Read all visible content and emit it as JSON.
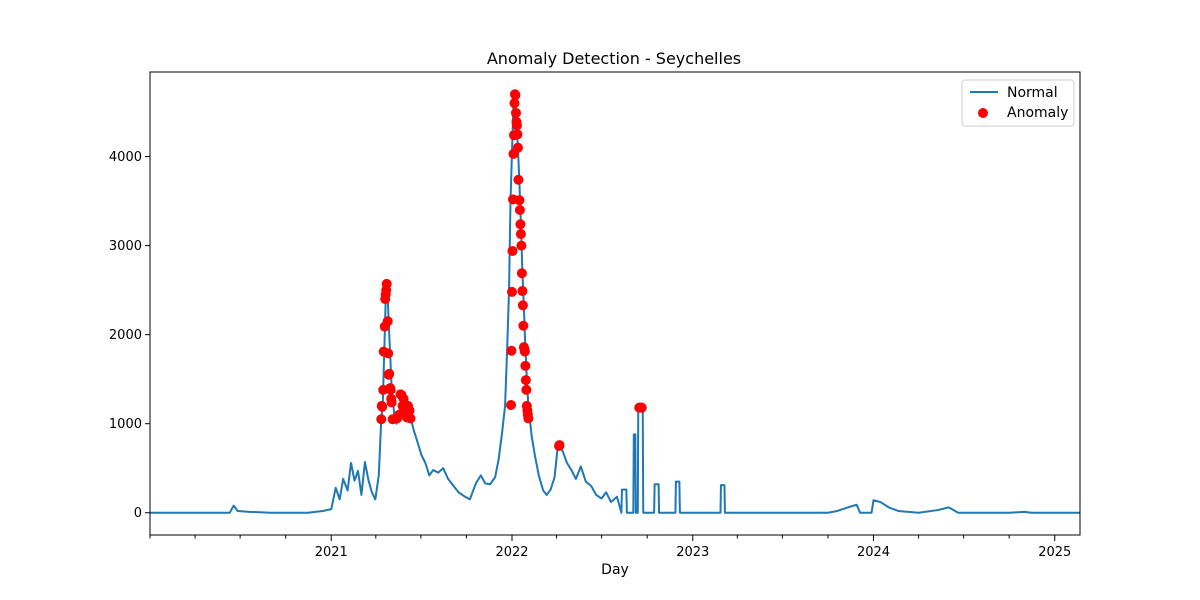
{
  "chart_data": {
    "type": "line",
    "title": "Anomaly Detection - Seychelles",
    "xlabel": "Day",
    "ylabel": "",
    "x_range": [
      "2020-01-01",
      "2025-02-21"
    ],
    "ylim": [
      -250,
      4950
    ],
    "x_ticks": [
      {
        "date": "2021-01-01",
        "label": "2021"
      },
      {
        "date": "2022-01-01",
        "label": "2022"
      },
      {
        "date": "2023-01-01",
        "label": "2023"
      },
      {
        "date": "2024-01-01",
        "label": "2024"
      },
      {
        "date": "2025-01-01",
        "label": "2025"
      }
    ],
    "y_ticks": [
      0,
      1000,
      2000,
      3000,
      4000
    ],
    "legend_placement": "top-right",
    "grid": false,
    "series": [
      {
        "name": "Normal",
        "kind": "line",
        "color": "#1f77b4",
        "points": [
          [
            "2020-01-01",
            0
          ],
          [
            "2020-06-10",
            0
          ],
          [
            "2020-06-18",
            80
          ],
          [
            "2020-06-26",
            20
          ],
          [
            "2020-07-20",
            10
          ],
          [
            "2020-09-01",
            0
          ],
          [
            "2020-11-15",
            0
          ],
          [
            "2020-12-15",
            20
          ],
          [
            "2021-01-01",
            40
          ],
          [
            "2021-01-10",
            280
          ],
          [
            "2021-01-18",
            150
          ],
          [
            "2021-01-25",
            380
          ],
          [
            "2021-02-03",
            250
          ],
          [
            "2021-02-10",
            560
          ],
          [
            "2021-02-17",
            360
          ],
          [
            "2021-02-24",
            470
          ],
          [
            "2021-03-03",
            200
          ],
          [
            "2021-03-10",
            570
          ],
          [
            "2021-03-17",
            370
          ],
          [
            "2021-03-24",
            230
          ],
          [
            "2021-03-31",
            150
          ],
          [
            "2021-04-07",
            420
          ],
          [
            "2021-04-12",
            1050
          ],
          [
            "2021-04-15",
            1220
          ],
          [
            "2021-04-18",
            1800
          ],
          [
            "2021-04-21",
            2400
          ],
          [
            "2021-04-24",
            2570
          ],
          [
            "2021-04-27",
            2150
          ],
          [
            "2021-04-30",
            1780
          ],
          [
            "2021-05-03",
            1400
          ],
          [
            "2021-05-06",
            1250
          ],
          [
            "2021-05-09",
            1050
          ],
          [
            "2021-05-13",
            1000
          ],
          [
            "2021-05-18",
            1100
          ],
          [
            "2021-05-23",
            1320
          ],
          [
            "2021-05-28",
            1280
          ],
          [
            "2021-06-03",
            1150
          ],
          [
            "2021-06-10",
            1070
          ],
          [
            "2021-06-17",
            920
          ],
          [
            "2021-06-25",
            780
          ],
          [
            "2021-07-02",
            650
          ],
          [
            "2021-07-10",
            560
          ],
          [
            "2021-07-18",
            420
          ],
          [
            "2021-07-26",
            480
          ],
          [
            "2021-08-05",
            450
          ],
          [
            "2021-08-15",
            500
          ],
          [
            "2021-08-25",
            380
          ],
          [
            "2021-09-05",
            300
          ],
          [
            "2021-09-15",
            230
          ],
          [
            "2021-09-28",
            180
          ],
          [
            "2021-10-08",
            150
          ],
          [
            "2021-10-20",
            330
          ],
          [
            "2021-10-30",
            420
          ],
          [
            "2021-11-08",
            330
          ],
          [
            "2021-11-18",
            320
          ],
          [
            "2021-11-28",
            400
          ],
          [
            "2021-12-05",
            600
          ],
          [
            "2021-12-12",
            900
          ],
          [
            "2021-12-18",
            1200
          ],
          [
            "2021-12-22",
            1800
          ],
          [
            "2021-12-26",
            2500
          ],
          [
            "2021-12-29",
            3500
          ],
          [
            "2022-01-01",
            4050
          ],
          [
            "2022-01-04",
            4600
          ],
          [
            "2022-01-07",
            4690
          ],
          [
            "2022-01-10",
            4350
          ],
          [
            "2022-01-13",
            4100
          ],
          [
            "2022-01-16",
            3700
          ],
          [
            "2022-01-19",
            3250
          ],
          [
            "2022-01-22",
            2700
          ],
          [
            "2022-01-25",
            2300
          ],
          [
            "2022-01-28",
            1850
          ],
          [
            "2022-01-31",
            1500
          ],
          [
            "2022-02-03",
            1200
          ],
          [
            "2022-02-06",
            1050
          ],
          [
            "2022-02-10",
            850
          ],
          [
            "2022-02-16",
            650
          ],
          [
            "2022-02-24",
            420
          ],
          [
            "2022-03-05",
            250
          ],
          [
            "2022-03-12",
            200
          ],
          [
            "2022-03-20",
            260
          ],
          [
            "2022-03-28",
            400
          ],
          [
            "2022-04-03",
            720
          ],
          [
            "2022-04-08",
            760
          ],
          [
            "2022-04-14",
            680
          ],
          [
            "2022-04-22",
            560
          ],
          [
            "2022-05-01",
            480
          ],
          [
            "2022-05-10",
            380
          ],
          [
            "2022-05-20",
            520
          ],
          [
            "2022-05-30",
            350
          ],
          [
            "2022-06-10",
            300
          ],
          [
            "2022-06-20",
            200
          ],
          [
            "2022-07-01",
            160
          ],
          [
            "2022-07-10",
            230
          ],
          [
            "2022-07-20",
            120
          ],
          [
            "2022-08-01",
            180
          ],
          [
            "2022-08-10",
            0
          ],
          [
            "2022-08-11",
            260
          ],
          [
            "2022-08-20",
            260
          ],
          [
            "2022-08-21",
            0
          ],
          [
            "2022-09-03",
            0
          ],
          [
            "2022-09-04",
            880
          ],
          [
            "2022-09-07",
            880
          ],
          [
            "2022-09-08",
            0
          ],
          [
            "2022-09-12",
            0
          ],
          [
            "2022-09-13",
            1180
          ],
          [
            "2022-09-22",
            1180
          ],
          [
            "2022-09-23",
            0
          ],
          [
            "2022-10-15",
            0
          ],
          [
            "2022-10-16",
            320
          ],
          [
            "2022-10-24",
            320
          ],
          [
            "2022-10-25",
            0
          ],
          [
            "2022-11-27",
            0
          ],
          [
            "2022-11-28",
            350
          ],
          [
            "2022-12-05",
            350
          ],
          [
            "2022-12-06",
            0
          ],
          [
            "2023-02-26",
            0
          ],
          [
            "2023-02-27",
            310
          ],
          [
            "2023-03-06",
            310
          ],
          [
            "2023-03-07",
            0
          ],
          [
            "2023-10-01",
            0
          ],
          [
            "2023-10-20",
            20
          ],
          [
            "2023-11-10",
            60
          ],
          [
            "2023-11-28",
            90
          ],
          [
            "2023-12-05",
            0
          ],
          [
            "2023-12-28",
            0
          ],
          [
            "2024-01-01",
            140
          ],
          [
            "2024-01-15",
            120
          ],
          [
            "2024-02-01",
            60
          ],
          [
            "2024-02-20",
            20
          ],
          [
            "2024-04-01",
            0
          ],
          [
            "2024-05-10",
            30
          ],
          [
            "2024-06-01",
            60
          ],
          [
            "2024-06-20",
            0
          ],
          [
            "2024-10-01",
            0
          ],
          [
            "2024-11-01",
            10
          ],
          [
            "2024-11-15",
            0
          ],
          [
            "2025-02-21",
            0
          ]
        ]
      },
      {
        "name": "Anomaly",
        "kind": "scatter",
        "color": "#ff0000",
        "points": [
          [
            "2021-04-12",
            1050
          ],
          [
            "2021-04-13",
            1200
          ],
          [
            "2021-04-14",
            1190
          ],
          [
            "2021-04-16",
            1380
          ],
          [
            "2021-04-17",
            1810
          ],
          [
            "2021-04-19",
            2090
          ],
          [
            "2021-04-20",
            2400
          ],
          [
            "2021-04-21",
            2450
          ],
          [
            "2021-04-22",
            2500
          ],
          [
            "2021-04-23",
            2570
          ],
          [
            "2021-04-25",
            2150
          ],
          [
            "2021-04-26",
            1790
          ],
          [
            "2021-04-27",
            1550
          ],
          [
            "2021-04-28",
            1560
          ],
          [
            "2021-04-30",
            1400
          ],
          [
            "2021-05-01",
            1380
          ],
          [
            "2021-05-02",
            1280
          ],
          [
            "2021-05-03",
            1240
          ],
          [
            "2021-05-05",
            1050
          ],
          [
            "2021-05-14",
            1060
          ],
          [
            "2021-05-18",
            1100
          ],
          [
            "2021-05-21",
            1330
          ],
          [
            "2021-05-23",
            1320
          ],
          [
            "2021-05-25",
            1200
          ],
          [
            "2021-05-27",
            1280
          ],
          [
            "2021-05-29",
            1150
          ],
          [
            "2021-06-01",
            1100
          ],
          [
            "2021-06-03",
            1070
          ],
          [
            "2021-06-05",
            1200
          ],
          [
            "2021-06-08",
            1150
          ],
          [
            "2021-06-10",
            1060
          ],
          [
            "2021-12-30",
            1210
          ],
          [
            "2021-12-31",
            1820
          ],
          [
            "2022-01-01",
            2480
          ],
          [
            "2022-01-02",
            2940
          ],
          [
            "2022-01-03",
            3520
          ],
          [
            "2022-01-04",
            4030
          ],
          [
            "2022-01-05",
            4240
          ],
          [
            "2022-01-06",
            4600
          ],
          [
            "2022-01-07",
            4700
          ],
          [
            "2022-01-08",
            4690
          ],
          [
            "2022-01-09",
            4490
          ],
          [
            "2022-01-10",
            4390
          ],
          [
            "2022-01-11",
            4350
          ],
          [
            "2022-01-12",
            4250
          ],
          [
            "2022-01-13",
            4100
          ],
          [
            "2022-01-14",
            3740
          ],
          [
            "2022-01-16",
            3510
          ],
          [
            "2022-01-17",
            3400
          ],
          [
            "2022-01-18",
            3240
          ],
          [
            "2022-01-19",
            3130
          ],
          [
            "2022-01-20",
            3000
          ],
          [
            "2022-01-21",
            2690
          ],
          [
            "2022-01-22",
            2490
          ],
          [
            "2022-01-23",
            2330
          ],
          [
            "2022-01-24",
            2100
          ],
          [
            "2022-01-25",
            1860
          ],
          [
            "2022-01-26",
            1840
          ],
          [
            "2022-01-27",
            1810
          ],
          [
            "2022-01-28",
            1650
          ],
          [
            "2022-01-29",
            1490
          ],
          [
            "2022-01-30",
            1380
          ],
          [
            "2022-01-31",
            1200
          ],
          [
            "2022-02-01",
            1150
          ],
          [
            "2022-02-02",
            1100
          ],
          [
            "2022-02-03",
            1060
          ],
          [
            "2022-04-06",
            750
          ],
          [
            "2022-04-07",
            760
          ],
          [
            "2022-09-15",
            1180
          ],
          [
            "2022-09-18",
            1180
          ],
          [
            "2022-09-20",
            1180
          ]
        ]
      }
    ]
  }
}
